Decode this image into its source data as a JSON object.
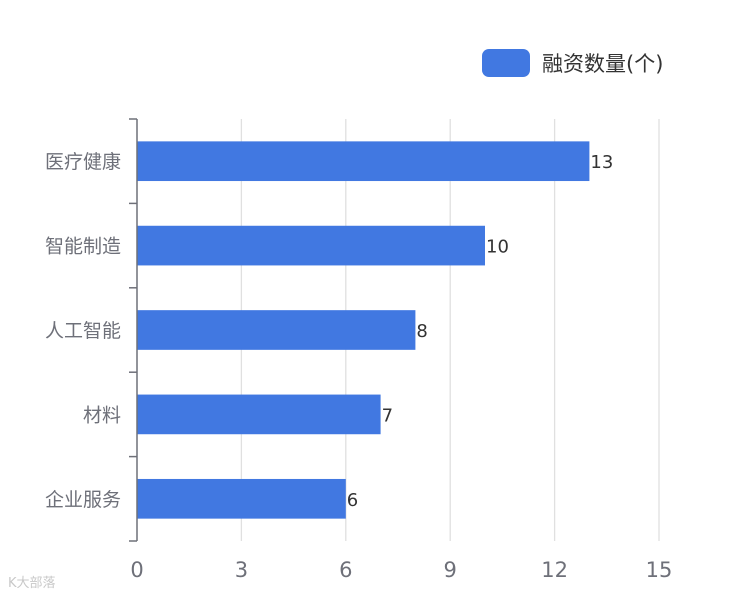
{
  "chart_data": {
    "type": "bar",
    "orientation": "horizontal",
    "categories": [
      "医疗健康",
      "智能制造",
      "人工智能",
      "材料",
      "企业服务"
    ],
    "series": [
      {
        "name": "融资数量(个)",
        "values": [
          13,
          10,
          8,
          7,
          6
        ]
      }
    ],
    "xlim": [
      0,
      15
    ],
    "xticks": [
      0,
      3,
      6,
      9,
      12,
      15
    ],
    "grid": "vertical",
    "legend": "top-right",
    "bar_color": "#4178e1",
    "data_labels": true
  },
  "watermark": "K大部落"
}
